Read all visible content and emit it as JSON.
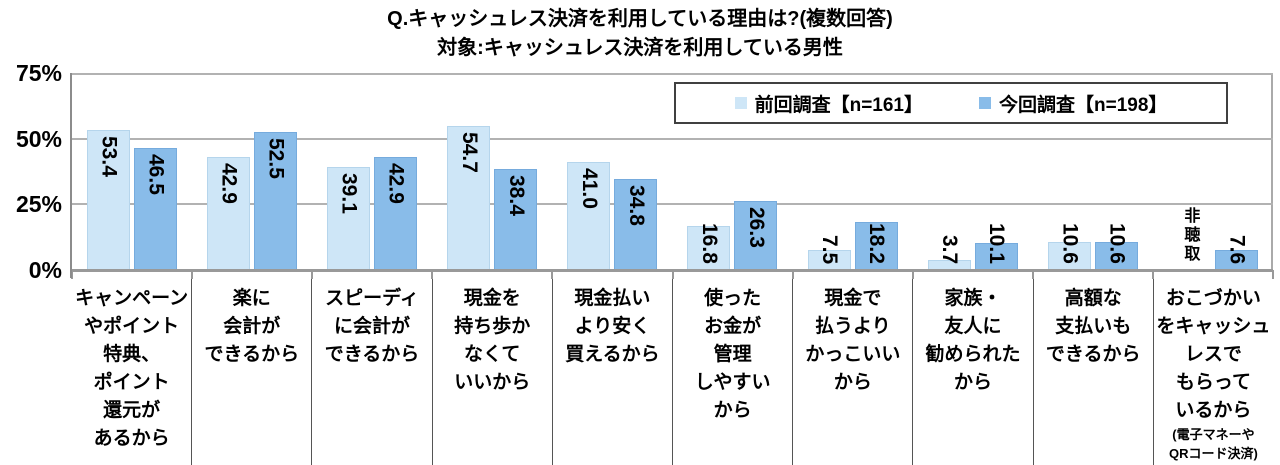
{
  "title": {
    "line1": "Q.キャッシュレス決済を利用している理由は?(複数回答)",
    "line2": "対象:キャッシュレス決済を利用している男性"
  },
  "y_axis": {
    "ticks": [
      "75%",
      "50%",
      "25%",
      "0%"
    ]
  },
  "chart_data": {
    "type": "bar",
    "title": "Q.キャッシュレス決済を利用している理由は?(複数回答)",
    "subtitle": "対象:キャッシュレス決済を利用している男性",
    "ylabel": "",
    "xlabel": "",
    "ylim": [
      0,
      75
    ],
    "ytick_percent": [
      0,
      25,
      50,
      75
    ],
    "grid": true,
    "legend_position": "top-right",
    "missing_value_label": "非聴取",
    "categories": [
      {
        "lines": [
          "キャンペーン",
          "やポイント",
          "特典、",
          "ポイント",
          "還元が",
          "あるから"
        ]
      },
      {
        "lines": [
          "楽に",
          "会計が",
          "できるから"
        ]
      },
      {
        "lines": [
          "スピーディ",
          "に会計が",
          "できるから"
        ]
      },
      {
        "lines": [
          "現金を",
          "持ち歩か",
          "なくて",
          "いいから"
        ]
      },
      {
        "lines": [
          "現金払い",
          "より安く",
          "買えるから"
        ]
      },
      {
        "lines": [
          "使った",
          "お金が",
          "管理",
          "しやすい",
          "から"
        ]
      },
      {
        "lines": [
          "現金で",
          "払うより",
          "かっこいい",
          "から"
        ]
      },
      {
        "lines": [
          "家族・",
          "友人に",
          "勧められた",
          "から"
        ]
      },
      {
        "lines": [
          "高額な",
          "支払いも",
          "できるから"
        ]
      },
      {
        "lines": [
          "おこづかい",
          "をキャッシュ",
          "レスで",
          "もらって",
          "いるから"
        ],
        "note_lines": [
          "(電子マネーや",
          "QRコード決済)"
        ]
      }
    ],
    "series": [
      {
        "name": "前回調査【n=161】",
        "color": "#cee6f7",
        "values": [
          53.4,
          42.9,
          39.1,
          54.7,
          41.0,
          16.8,
          7.5,
          3.7,
          10.6,
          null
        ]
      },
      {
        "name": "今回調査【n=198】",
        "color": "#89bce9",
        "values": [
          46.5,
          52.5,
          42.9,
          38.4,
          34.8,
          26.3,
          18.2,
          10.1,
          10.6,
          7.6
        ]
      }
    ]
  }
}
